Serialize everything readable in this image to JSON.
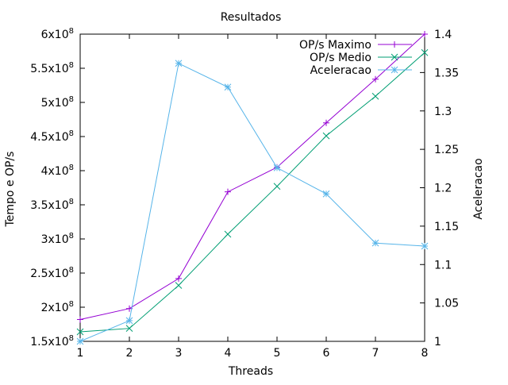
{
  "chart_data": {
    "type": "line",
    "title": "Resultados",
    "xlabel": "Threads",
    "ylabel": "Tempo e OP/s",
    "y2label": "Aceleracao",
    "x": [
      1,
      2,
      3,
      4,
      5,
      6,
      7,
      8
    ],
    "xlim": [
      1,
      8
    ],
    "xticks": [
      "1",
      "2",
      "3",
      "4",
      "5",
      "6",
      "7",
      "8"
    ],
    "ylim": [
      150000000,
      600000000
    ],
    "yticks": [
      {
        "value": 150000000,
        "mantissa": "1.5",
        "base": "x10",
        "exp": "8"
      },
      {
        "value": 200000000,
        "mantissa": "2",
        "base": "x10",
        "exp": "8"
      },
      {
        "value": 250000000,
        "mantissa": "2.5",
        "base": "x10",
        "exp": "8"
      },
      {
        "value": 300000000,
        "mantissa": "3",
        "base": "x10",
        "exp": "8"
      },
      {
        "value": 350000000,
        "mantissa": "3.5",
        "base": "x10",
        "exp": "8"
      },
      {
        "value": 400000000,
        "mantissa": "4",
        "base": "x10",
        "exp": "8"
      },
      {
        "value": 450000000,
        "mantissa": "4.5",
        "base": "x10",
        "exp": "8"
      },
      {
        "value": 500000000,
        "mantissa": "5",
        "base": "x10",
        "exp": "8"
      },
      {
        "value": 550000000,
        "mantissa": "5.5",
        "base": "x10",
        "exp": "8"
      },
      {
        "value": 600000000,
        "mantissa": "6",
        "base": "x10",
        "exp": "8"
      }
    ],
    "y2lim": [
      1,
      1.4
    ],
    "y2ticks": [
      {
        "value": 1,
        "label": "1"
      },
      {
        "value": 1.05,
        "label": "1.05"
      },
      {
        "value": 1.1,
        "label": "1.1"
      },
      {
        "value": 1.15,
        "label": "1.15"
      },
      {
        "value": 1.2,
        "label": "1.2"
      },
      {
        "value": 1.25,
        "label": "1.25"
      },
      {
        "value": 1.3,
        "label": "1.3"
      },
      {
        "value": 1.35,
        "label": "1.35"
      },
      {
        "value": 1.4,
        "label": "1.4"
      }
    ],
    "grid": false,
    "legend_position": "top-right",
    "series": [
      {
        "name": "OP/s Maximo",
        "axis": "y",
        "color": "#9400d3",
        "marker": "plus",
        "values": [
          182000000,
          198000000,
          242000000,
          369000000,
          405000000,
          470000000,
          534000000,
          600000000
        ]
      },
      {
        "name": "OP/s Medio",
        "axis": "y",
        "color": "#009e73",
        "marker": "cross",
        "values": [
          164000000,
          169000000,
          232000000,
          307000000,
          377000000,
          451000000,
          509000000,
          573000000
        ]
      },
      {
        "name": "Aceleracao",
        "axis": "y2",
        "color": "#56b4e9",
        "marker": "star",
        "values": [
          1.0,
          1.027,
          1.362,
          1.331,
          1.226,
          1.192,
          1.128,
          1.124
        ]
      }
    ]
  }
}
